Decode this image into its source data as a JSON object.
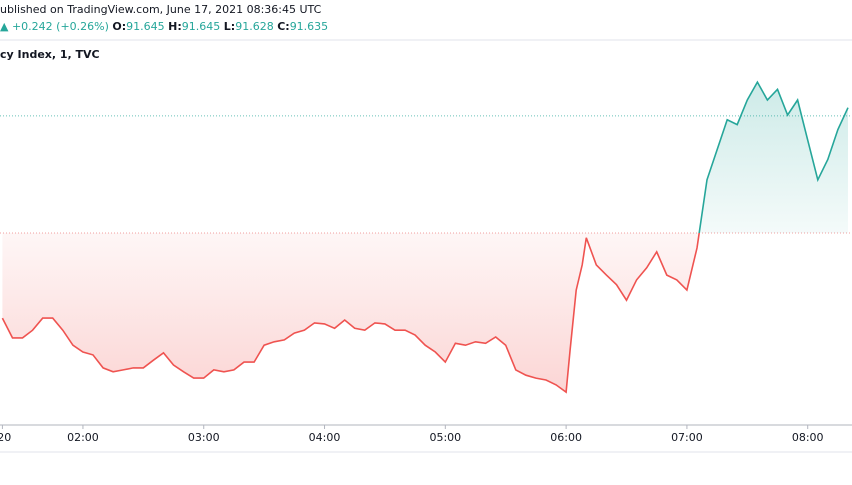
{
  "header": {
    "published": "ublished on TradingView.com, June 17, 2021 08:36:45 UTC",
    "arrow": "▲",
    "change": "+0.242 (+0.26%)",
    "ohlc": [
      {
        "label": "O:",
        "value": 91.645
      },
      {
        "label": "H:",
        "value": 91.645
      },
      {
        "label": "L:",
        "value": 91.628
      },
      {
        "label": "C:",
        "value": 91.635
      }
    ]
  },
  "chart_data": {
    "type": "line",
    "title": "cy Index, 1, TVC",
    "x": [
      80,
      85,
      90,
      95,
      100,
      105,
      110,
      115,
      120,
      125,
      130,
      135,
      140,
      145,
      150,
      155,
      160,
      165,
      170,
      175,
      180,
      185,
      190,
      195,
      200,
      205,
      210,
      215,
      220,
      225,
      230,
      235,
      240,
      245,
      250,
      255,
      260,
      265,
      270,
      275,
      280,
      285,
      290,
      295,
      300,
      305,
      310,
      315,
      320,
      325,
      330,
      335,
      340,
      345,
      350,
      355,
      360,
      362,
      365,
      368,
      370,
      375,
      380,
      385,
      390,
      395,
      400,
      405,
      410,
      415,
      420,
      425,
      430,
      435,
      440,
      445,
      450,
      455,
      460,
      465,
      470,
      475,
      480,
      485,
      490,
      495,
      500
    ],
    "values": [
      91.217,
      91.176,
      91.176,
      91.192,
      91.217,
      91.217,
      91.192,
      91.161,
      91.147,
      91.141,
      91.114,
      91.106,
      91.11,
      91.114,
      91.114,
      91.13,
      91.145,
      91.12,
      91.106,
      91.093,
      91.093,
      91.11,
      91.106,
      91.11,
      91.126,
      91.126,
      91.161,
      91.168,
      91.172,
      91.186,
      91.192,
      91.207,
      91.205,
      91.196,
      91.213,
      91.196,
      91.192,
      91.207,
      91.205,
      91.192,
      91.192,
      91.182,
      91.161,
      91.147,
      91.126,
      91.165,
      91.161,
      91.168,
      91.165,
      91.178,
      91.161,
      91.11,
      91.099,
      91.093,
      91.089,
      91.079,
      91.064,
      91.151,
      91.275,
      91.327,
      91.383,
      91.327,
      91.306,
      91.286,
      91.254,
      91.296,
      91.321,
      91.354,
      91.306,
      91.296,
      91.275,
      91.362,
      91.503,
      91.565,
      91.627,
      91.617,
      91.668,
      91.705,
      91.668,
      91.69,
      91.637,
      91.668,
      91.585,
      91.503,
      91.545,
      91.607,
      91.652
    ],
    "baseline": 91.393,
    "up_color": "#26a69a",
    "down_color": "#ef5350",
    "xlim": [
      78.8,
      502
    ],
    "ylim": [
      90.996,
      91.792
    ],
    "xticks": [
      {
        "value": 80,
        "label": ":20"
      },
      {
        "value": 120,
        "label": "02:00"
      },
      {
        "value": 180,
        "label": "03:00"
      },
      {
        "value": 240,
        "label": "04:00"
      },
      {
        "value": 300,
        "label": "05:00"
      },
      {
        "value": 360,
        "label": "06:00"
      },
      {
        "value": 420,
        "label": "07:00"
      },
      {
        "value": 480,
        "label": "08:00"
      }
    ]
  }
}
